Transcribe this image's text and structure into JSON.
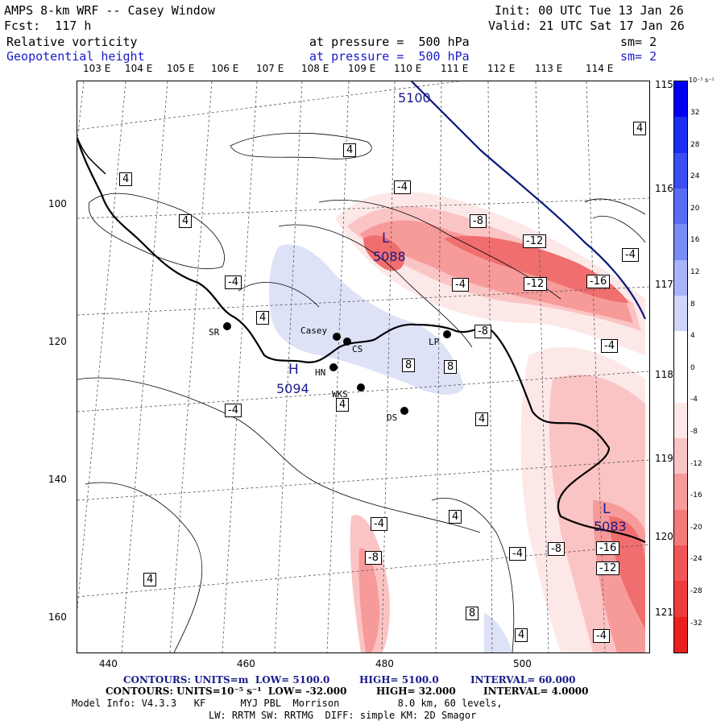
{
  "header": {
    "title": "AMPS 8-km WRF -- Casey Window",
    "init": "Init: 00 UTC Tue 13 Jan 26",
    "fcst": "Fcst:  117 h",
    "valid": "Valid: 21 UTC Sat 17 Jan 26",
    "field1_name": "Relative vorticity",
    "field1_level": "at pressure =  500 hPa",
    "field1_sm": "sm= 2",
    "field2_name": "Geopotential height",
    "field2_level": "at pressure =  500 hPa",
    "field2_sm": "sm= 2"
  },
  "axes": {
    "x_ticks": [
      "440",
      "460",
      "480",
      "500"
    ],
    "y_ticks": [
      "100",
      "120",
      "140",
      "160"
    ],
    "lon_top": [
      "103 E",
      "104 E",
      "105 E",
      "106 E",
      "107 E",
      "108 E",
      "109 E",
      "110 E",
      "111 E",
      "112 E",
      "113 E",
      "114 E"
    ],
    "lon_right": [
      "115 E",
      "116 E",
      "117 E",
      "118 E",
      "119 E",
      "120 E",
      "121 E"
    ]
  },
  "colorbar": {
    "unit": "10⁻⁵ s⁻¹",
    "labels": [
      "32",
      "28",
      "24",
      "20",
      "16",
      "12",
      "8",
      "4",
      "0",
      "-4",
      "-8",
      "-12",
      "-16",
      "-20",
      "-24",
      "-28",
      "-32"
    ]
  },
  "stations": [
    {
      "code": "SR",
      "label": "SR"
    },
    {
      "code": "Casey",
      "label": "Casey"
    },
    {
      "code": "CS",
      "label": "CS"
    },
    {
      "code": "HN",
      "label": "HN"
    },
    {
      "code": "LP",
      "label": "LP"
    },
    {
      "code": "WKS",
      "label": "WKS"
    },
    {
      "code": "DS",
      "label": "DS"
    }
  ],
  "height_labels": {
    "contour_5100": "5100",
    "low_center_1": "5088",
    "low_center_2": "5083",
    "high_center": "5094",
    "low_letter": "L",
    "high_letter": "H"
  },
  "vort_labels": [
    "4",
    "4",
    "4",
    "-4",
    "-4",
    "-8",
    "-12",
    "-12",
    "-4",
    "-16",
    "-8",
    "-4",
    "4",
    "8",
    "8",
    "4",
    "-4",
    "-4",
    "4",
    "4",
    "-4",
    "-8",
    "4",
    "-4",
    "-8",
    "-12",
    "-16",
    "4",
    "8",
    "4",
    "-4"
  ],
  "footer": {
    "line1_a": "CONTOURS: UNITS=m  LOW= 5100.0",
    "line1_b": "HIGH= 5100.0",
    "line1_c": "INTERVAL= 60.000",
    "line2_a": "CONTOURS: UNITS=10⁻⁵ s⁻¹  LOW= -32.000",
    "line2_b": "HIGH= 32.000",
    "line2_c": "INTERVAL= 4.0000",
    "line3": "Model Info: V4.3.3   KF      MYJ PBL  Morrison          8.0 km, 60 levels,",
    "line4": "LW: RRTM SW: RRTMG  DIFF: simple KM: 2D Smagor"
  },
  "colors": {
    "height_contour": "#0a1a7a",
    "neg_strong": "#ff2020",
    "pos_light": "#dde2f7"
  }
}
